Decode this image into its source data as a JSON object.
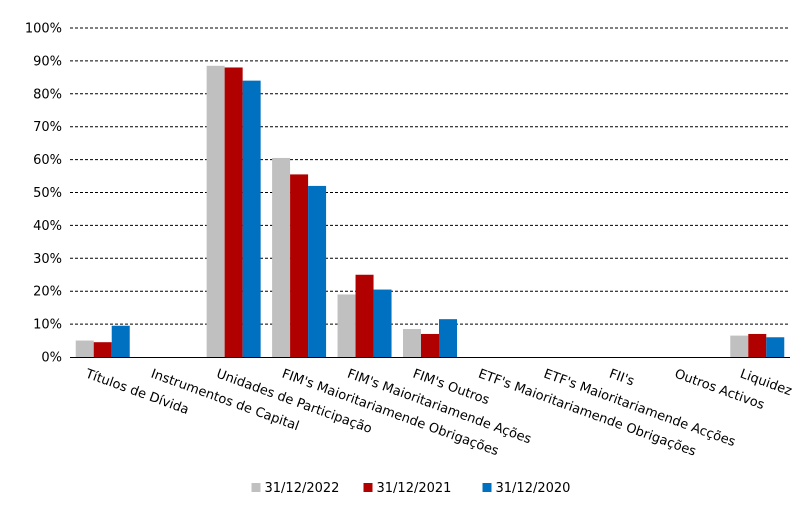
{
  "chart_data": {
    "type": "bar",
    "categories": [
      "Títulos de Dívida",
      "Instrumentos de Capital",
      "Unidades de Participação",
      "FIM's Maioritariamende Obrigações",
      "FIM's Maioritariamende Ações",
      "FIM's Outros",
      "ETF's Maioritariamende Obrigações",
      "ETF's Maioritariamende Acções",
      "FII's",
      "Outros Activos",
      "Liquidez"
    ],
    "series": [
      {
        "name": "31/12/2022",
        "color": "#c0c0c0",
        "values": [
          5,
          0,
          88.5,
          60.5,
          19,
          8.5,
          0,
          0,
          0,
          0,
          6.5
        ]
      },
      {
        "name": "31/12/2021",
        "color": "#b00000",
        "values": [
          4.5,
          0,
          88,
          55.5,
          25,
          7,
          0,
          0,
          0,
          0,
          7
        ]
      },
      {
        "name": "31/12/2020",
        "color": "#0070c0",
        "values": [
          9.5,
          0,
          84,
          52,
          20.5,
          11.5,
          0,
          0,
          0,
          0,
          6
        ]
      }
    ],
    "ylim": [
      0,
      100
    ],
    "yticks": [
      "0%",
      "10%",
      "20%",
      "30%",
      "40%",
      "50%",
      "60%",
      "70%",
      "80%",
      "90%",
      "100%"
    ],
    "grid": true,
    "legend_position": "bottom",
    "title": "",
    "xlabel": "",
    "ylabel": ""
  }
}
